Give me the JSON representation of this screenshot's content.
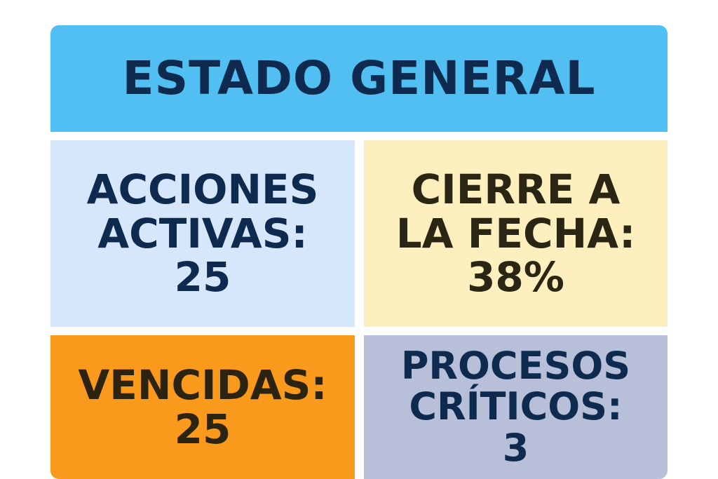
{
  "header": {
    "title": "ESTADO GENERAL"
  },
  "tiles": {
    "active": {
      "line1": "ACCIONES",
      "line2": "ACTIVAS:",
      "value": "25"
    },
    "closure": {
      "line1": "CIERRE A",
      "line2": "LA FECHA:",
      "value": "38%"
    },
    "overdue": {
      "line1": "VENCIDAS:",
      "value": "25"
    },
    "critical": {
      "line1": "PROCESOS",
      "line2": "CRÍTICOS:",
      "value": "3"
    }
  },
  "colors": {
    "header_bg": "#52bff2",
    "active_bg": "#d6e6fb",
    "closure_bg": "#fdf0be",
    "overdue_bg": "#f99a1c",
    "critical_bg": "#b7c0d8",
    "text_navy": "#0e2a4f"
  }
}
